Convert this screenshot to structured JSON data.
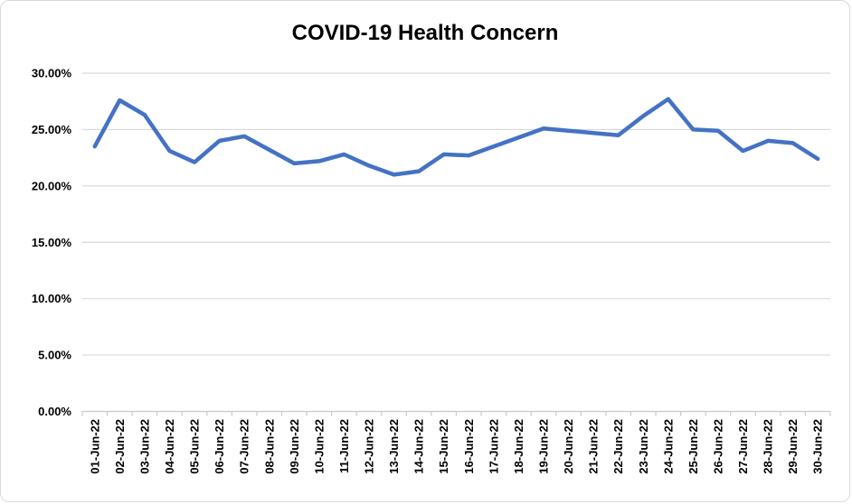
{
  "chart_data": {
    "type": "line",
    "title": "COVID-19 Health Concern",
    "categories": [
      "01-Jun-22",
      "02-Jun-22",
      "03-Jun-22",
      "04-Jun-22",
      "05-Jun-22",
      "06-Jun-22",
      "07-Jun-22",
      "08-Jun-22",
      "09-Jun-22",
      "10-Jun-22",
      "11-Jun-22",
      "12-Jun-22",
      "13-Jun-22",
      "14-Jun-22",
      "15-Jun-22",
      "16-Jun-22",
      "17-Jun-22",
      "18-Jun-22",
      "19-Jun-22",
      "20-Jun-22",
      "21-Jun-22",
      "22-Jun-22",
      "23-Jun-22",
      "24-Jun-22",
      "25-Jun-22",
      "26-Jun-22",
      "27-Jun-22",
      "28-Jun-22",
      "29-Jun-22",
      "30-Jun-22"
    ],
    "values": [
      23.5,
      27.6,
      26.3,
      23.1,
      22.1,
      24.0,
      24.4,
      23.2,
      22.0,
      22.2,
      22.8,
      21.8,
      21.0,
      21.3,
      22.8,
      22.7,
      23.5,
      24.3,
      25.1,
      24.9,
      24.7,
      24.5,
      26.2,
      27.7,
      25.0,
      24.9,
      23.1,
      24.0,
      23.8,
      22.4
    ],
    "values_unit": "%",
    "xlabel": "",
    "ylabel": "",
    "ylim": [
      0,
      30
    ],
    "ytick_step": 5,
    "ytick_labels": [
      "0.00%",
      "5.00%",
      "10.00%",
      "15.00%",
      "20.00%",
      "25.00%",
      "30.00%"
    ],
    "grid": true,
    "legend": "none",
    "colors": {
      "line": "#4472C4",
      "gridline": "#D9D9D9",
      "axis": "#C9C9C9",
      "text": "#000000",
      "frame_border": "#D9D9D9",
      "background": "#FFFFFF"
    }
  }
}
